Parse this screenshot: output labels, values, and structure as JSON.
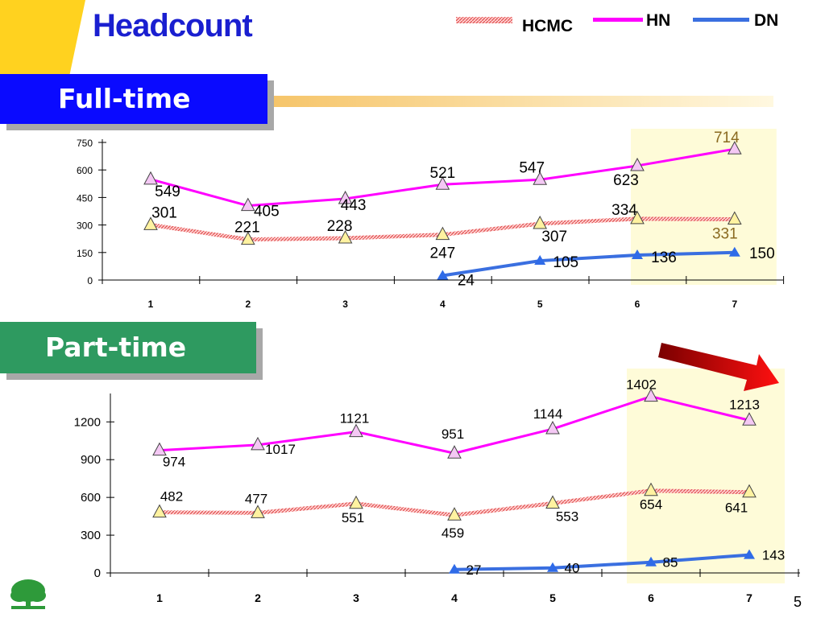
{
  "slide": {
    "title": "Headcount",
    "page_number": "5"
  },
  "legend": {
    "items": [
      {
        "name": "HCMC",
        "color": "#f08080"
      },
      {
        "name": "HN",
        "color": "#ff00ff"
      },
      {
        "name": "DN",
        "color": "#3a6fe0"
      }
    ]
  },
  "sections": {
    "fulltime_label": "Full-time",
    "parttime_label": "Part-time"
  },
  "colors": {
    "title": "#1a1fd0",
    "fulltime_badge": "#0a0aff",
    "parttime_badge": "#2e9a60",
    "highlight": "#fefbd8",
    "hcmc_line": "#f08080",
    "hn_line": "#ff00ff",
    "dn_line": "#3a6fe0",
    "arrow": "#e00000"
  },
  "chart_data": [
    {
      "type": "line",
      "title": "Full-time",
      "x": [
        1,
        2,
        3,
        4,
        5,
        6,
        7
      ],
      "ylim": [
        0,
        750
      ],
      "yticks": [
        0,
        150,
        300,
        450,
        600,
        750
      ],
      "highlight_x": [
        6,
        7
      ],
      "series": [
        {
          "name": "HN",
          "x": [
            1,
            2,
            3,
            4,
            5,
            6,
            7
          ],
          "values": [
            549,
            405,
            443,
            521,
            547,
            623,
            714
          ],
          "labels": [
            "549",
            "405",
            "443",
            "521",
            "547",
            "623",
            "714"
          ]
        },
        {
          "name": "HCMC",
          "x": [
            1,
            2,
            3,
            4,
            5,
            6,
            7
          ],
          "values": [
            301,
            221,
            228,
            247,
            307,
            334,
            331
          ],
          "labels": [
            "301",
            "221",
            "228",
            "247",
            "307",
            "334",
            "331"
          ]
        },
        {
          "name": "DN",
          "x": [
            4,
            5,
            6,
            7
          ],
          "values": [
            24,
            105,
            136,
            150
          ],
          "labels": [
            "24",
            "105",
            "136",
            "150"
          ]
        }
      ]
    },
    {
      "type": "line",
      "title": "Part-time",
      "x": [
        1,
        2,
        3,
        4,
        5,
        6,
        7
      ],
      "ylim": [
        0,
        1400
      ],
      "yticks": [
        0,
        300,
        600,
        900,
        1200
      ],
      "highlight_x": [
        6,
        7
      ],
      "series": [
        {
          "name": "HN",
          "x": [
            1,
            2,
            3,
            4,
            5,
            6,
            7
          ],
          "values": [
            974,
            1017,
            1121,
            951,
            1144,
            1402,
            1213
          ],
          "labels": [
            "974",
            "1017",
            "1121",
            "951",
            "1144",
            "1402",
            "1213"
          ]
        },
        {
          "name": "HCMC",
          "x": [
            1,
            2,
            3,
            4,
            5,
            6,
            7
          ],
          "values": [
            482,
            477,
            551,
            459,
            553,
            654,
            641
          ],
          "labels": [
            "482",
            "477",
            "551",
            "459",
            "553",
            "654",
            "641"
          ]
        },
        {
          "name": "DN",
          "x": [
            4,
            5,
            6,
            7
          ],
          "values": [
            27,
            40,
            85,
            143
          ],
          "labels": [
            "27",
            "40",
            "85",
            "143"
          ]
        }
      ]
    }
  ]
}
